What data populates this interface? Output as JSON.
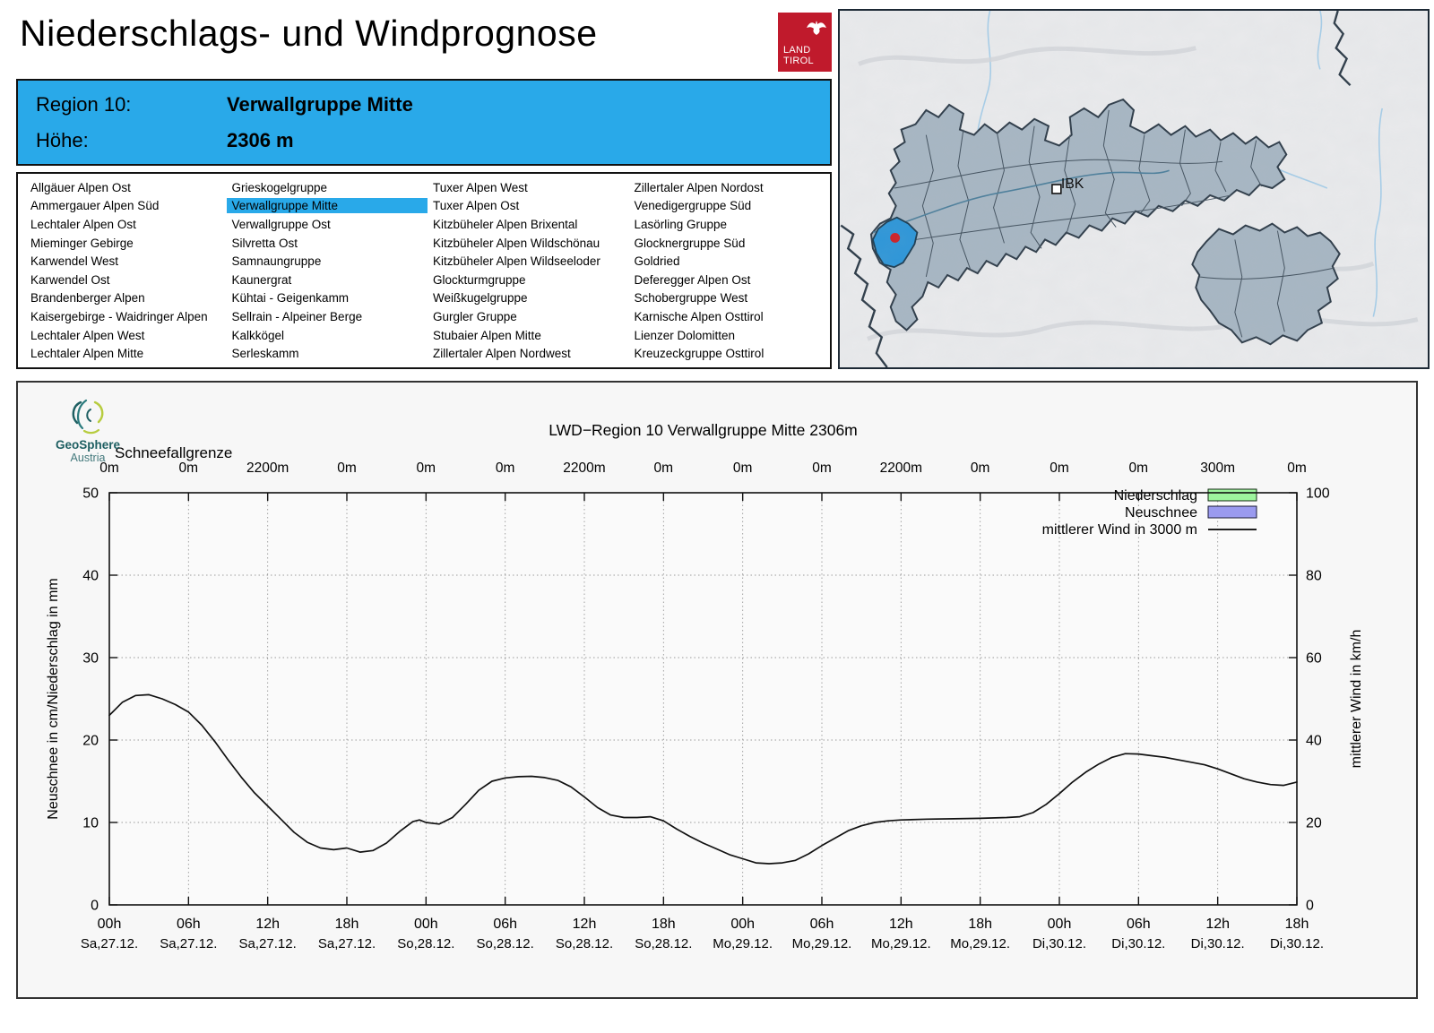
{
  "header": {
    "title": "Niederschlags- und Windprognose",
    "logo_line1": "LAND",
    "logo_line2": "TIROL",
    "region_label": "Region 10:",
    "region_value": "Verwallgruppe Mitte",
    "altitude_label": "Höhe:",
    "altitude_value": "2306 m"
  },
  "regions": {
    "selected": "Verwallgruppe Mitte",
    "columns": [
      [
        "Allgäuer Alpen Ost",
        "Ammergauer Alpen Süd",
        "Lechtaler Alpen Ost",
        "Mieminger Gebirge",
        "Karwendel West",
        "Karwendel Ost",
        "Brandenberger Alpen",
        "Kaisergebirge - Waidringer Alpen",
        "Lechtaler Alpen West",
        "Lechtaler Alpen Mitte"
      ],
      [
        "Grieskogelgruppe",
        "Verwallgruppe Mitte",
        "Verwallgruppe Ost",
        "Silvretta Ost",
        "Samnaungruppe",
        "Kaunergrat",
        "Kühtai - Geigenkamm",
        "Sellrain - Alpeiner Berge",
        "Kalkkögel",
        "Serleskamm"
      ],
      [
        "Tuxer Alpen West",
        "Tuxer Alpen Ost",
        "Kitzbüheler Alpen Brixental",
        "Kitzbüheler Alpen Wildschönau",
        "Kitzbüheler Alpen Wildseeloder",
        "Glockturmgruppe",
        "Weißkugelgruppe",
        "Gurgler Gruppe",
        "Stubaier Alpen Mitte",
        "Zillertaler Alpen Nordwest"
      ],
      [
        "Zillertaler Alpen Nordost",
        "Venedigergruppe Süd",
        "Lasörling Gruppe",
        "Glocknergruppe Süd",
        "Goldried",
        "Deferegger Alpen Ost",
        "Schobergruppe West",
        "Karnische Alpen Osttirol",
        "Lienzer Dolomitten",
        "Kreuzeckgruppe Osttirol"
      ]
    ]
  },
  "map": {
    "city_label": "IBK",
    "highlight_color": "#2e96d8",
    "region_fill": "#a7b6c3",
    "marker_color": "#cc2127"
  },
  "colors": {
    "accent_blue": "#29a9e9",
    "logo_red": "#c01a2c"
  },
  "chart_data": {
    "type": "line",
    "title": "LWD−Region 10 Verwallgruppe Mitte 2306m",
    "logo": {
      "name": "GeoSphere",
      "sub": "Austria"
    },
    "top_axis": {
      "label": "Schneefallgrenze",
      "tick_labels": [
        "0m",
        "0m",
        "2200m",
        "0m",
        "0m",
        "0m",
        "2200m",
        "0m",
        "0m",
        "0m",
        "2200m",
        "0m",
        "0m",
        "0m",
        "300m",
        "0m"
      ]
    },
    "x_axis": {
      "tick_hours": [
        0,
        6,
        12,
        18,
        24,
        30,
        36,
        42,
        48,
        54,
        60,
        66,
        72,
        78,
        84,
        90
      ],
      "time_labels": [
        "00h",
        "06h",
        "12h",
        "18h",
        "00h",
        "06h",
        "12h",
        "18h",
        "00h",
        "06h",
        "12h",
        "18h",
        "00h",
        "06h",
        "12h",
        "18h"
      ],
      "date_labels": [
        "Sa,27.12.",
        "Sa,27.12.",
        "Sa,27.12.",
        "Sa,27.12.",
        "So,28.12.",
        "So,28.12.",
        "So,28.12.",
        "So,28.12.",
        "Mo,29.12.",
        "Mo,29.12.",
        "Mo,29.12.",
        "Mo,29.12.",
        "Di,30.12.",
        "Di,30.12.",
        "Di,30.12.",
        "Di,30.12."
      ]
    },
    "y_left": {
      "label": "Neuschnee in cm/Niederschlag in mm",
      "ticks": [
        0,
        10,
        20,
        30,
        40,
        50
      ],
      "range": [
        0,
        50
      ]
    },
    "y_right": {
      "label": "mittlerer Wind in km/h",
      "ticks": [
        0,
        20,
        40,
        60,
        80,
        100
      ],
      "range": [
        0,
        100
      ]
    },
    "legend": [
      {
        "label": "Niederschlag",
        "type": "box",
        "fill": "#9df49d",
        "stroke": "#2ca02c"
      },
      {
        "label": "Neuschnee",
        "type": "box",
        "fill": "#9a9aef",
        "stroke": "#4444cc"
      },
      {
        "label": "mittlerer Wind in 3000 m",
        "type": "line",
        "color": "#000000"
      }
    ],
    "series": [
      {
        "name": "Niederschlag",
        "unit": "mm",
        "axis": "left",
        "values": []
      },
      {
        "name": "Neuschnee",
        "unit": "cm",
        "axis": "left",
        "values": []
      },
      {
        "name": "mittlerer Wind in 3000 m",
        "unit": "km/h",
        "axis": "right",
        "x_hours": [
          0,
          1,
          2,
          3,
          4,
          5,
          6,
          7,
          8,
          9,
          10,
          11,
          12,
          13,
          14,
          15,
          16,
          17,
          18,
          19,
          20,
          21,
          22,
          23,
          23.5,
          24,
          25,
          26,
          27,
          28,
          29,
          30,
          31,
          32,
          33,
          34,
          35,
          36,
          37,
          38,
          39,
          40,
          41,
          42,
          43,
          44,
          45,
          46,
          47,
          48,
          49,
          50,
          51,
          52,
          53,
          54,
          55,
          56,
          57,
          58,
          59,
          60,
          62,
          64,
          66,
          68,
          69,
          70,
          71,
          72,
          73,
          74,
          75,
          76,
          77,
          78,
          79,
          80,
          81,
          82,
          83,
          84,
          85,
          86,
          87,
          88,
          89,
          90
        ],
        "values_kmh": [
          46,
          49.2,
          50.8,
          51,
          50,
          48.6,
          46.8,
          43.6,
          39.6,
          35.2,
          31,
          27.2,
          24,
          20.8,
          17.6,
          15.2,
          13.8,
          13.4,
          13.8,
          12.8,
          13.2,
          15,
          17.8,
          20.2,
          20.6,
          20,
          19.6,
          21.2,
          24.4,
          27.8,
          30,
          30.8,
          31.1,
          31.2,
          30.9,
          30.2,
          28.6,
          26.2,
          23.6,
          21.8,
          21.2,
          21.2,
          21.4,
          20.4,
          18.4,
          16.6,
          15,
          13.6,
          12.2,
          11.2,
          10.2,
          10,
          10.2,
          10.8,
          12.4,
          14.4,
          16.2,
          18,
          19.2,
          20,
          20.4,
          20.6,
          20.8,
          20.9,
          21,
          21.2,
          21.4,
          22.4,
          24.4,
          27,
          29.8,
          32.2,
          34.2,
          35.8,
          36.7,
          36.6,
          36.2,
          35.8,
          35.2,
          34.6,
          34,
          33,
          31.8,
          30.6,
          29.8,
          29.2,
          29,
          29.8
        ]
      }
    ],
    "grid": true,
    "legend_position": "top-right"
  }
}
